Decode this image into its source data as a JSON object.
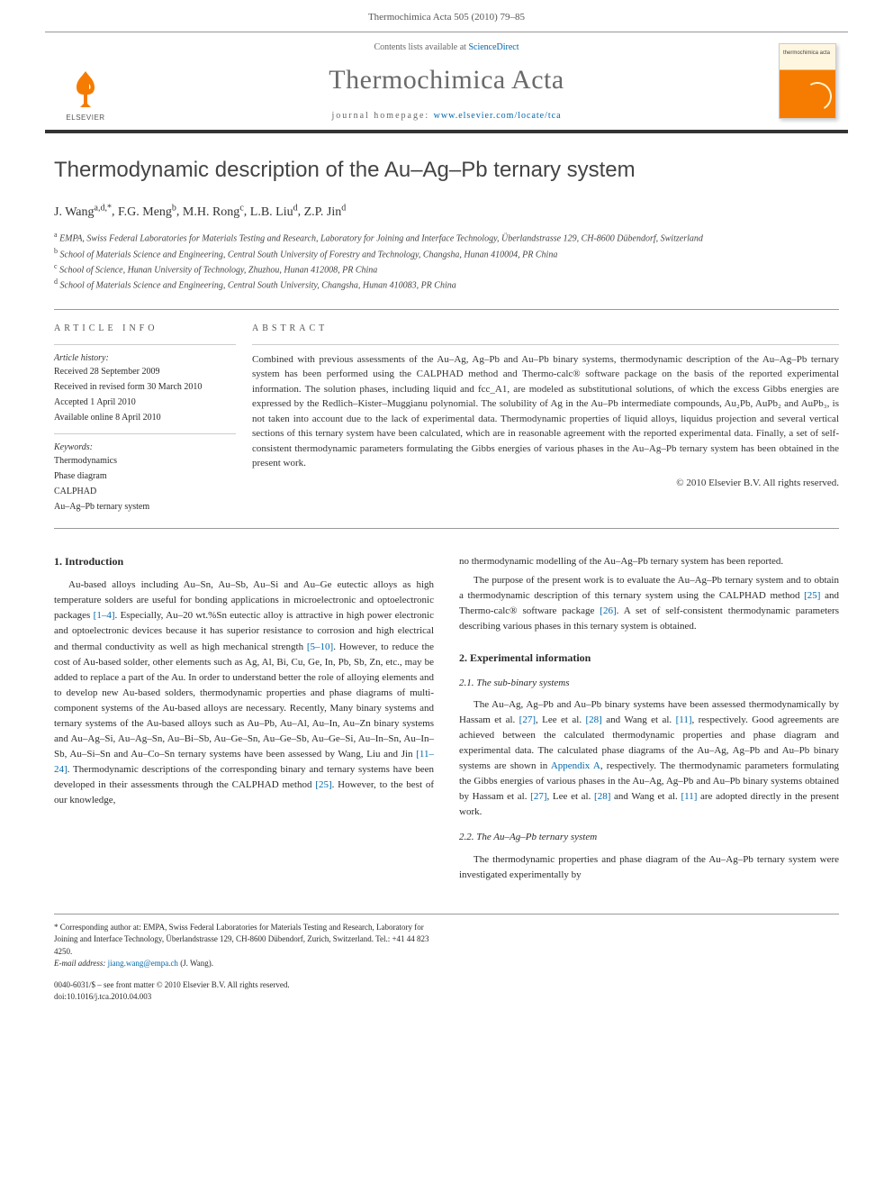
{
  "header": {
    "citation": "Thermochimica Acta 505 (2010) 79–85"
  },
  "masthead": {
    "contents_prefix": "Contents lists available at ",
    "contents_link": "ScienceDirect",
    "journal_title": "Thermochimica Acta",
    "homepage_prefix": "journal homepage: ",
    "homepage_url": "www.elsevier.com/locate/tca",
    "elsevier_label": "ELSEVIER",
    "cover_label": "thermochimica acta"
  },
  "article": {
    "title": "Thermodynamic description of the Au–Ag–Pb ternary system",
    "authors_html": "J. Wang",
    "authors": [
      {
        "name": "J. Wang",
        "aff": "a,d,*"
      },
      {
        "name": "F.G. Meng",
        "aff": "b"
      },
      {
        "name": "M.H. Rong",
        "aff": "c"
      },
      {
        "name": "L.B. Liu",
        "aff": "d"
      },
      {
        "name": "Z.P. Jin",
        "aff": "d"
      }
    ],
    "affiliations": [
      {
        "marker": "a",
        "text": "EMPA, Swiss Federal Laboratories for Materials Testing and Research, Laboratory for Joining and Interface Technology, Überlandstrasse 129, CH-8600 Dübendorf, Switzerland"
      },
      {
        "marker": "b",
        "text": "School of Materials Science and Engineering, Central South University of Forestry and Technology, Changsha, Hunan 410004, PR China"
      },
      {
        "marker": "c",
        "text": "School of Science, Hunan University of Technology, Zhuzhou, Hunan 412008, PR China"
      },
      {
        "marker": "d",
        "text": "School of Materials Science and Engineering, Central South University, Changsha, Hunan 410083, PR China"
      }
    ]
  },
  "info": {
    "heading": "article info",
    "history_label": "Article history:",
    "history": [
      "Received 28 September 2009",
      "Received in revised form 30 March 2010",
      "Accepted 1 April 2010",
      "Available online 8 April 2010"
    ],
    "keywords_label": "Keywords:",
    "keywords": [
      "Thermodynamics",
      "Phase diagram",
      "CALPHAD",
      "Au–Ag–Pb ternary system"
    ]
  },
  "abstract": {
    "heading": "abstract",
    "text": "Combined with previous assessments of the Au–Ag, Ag–Pb and Au–Pb binary systems, thermodynamic description of the Au–Ag–Pb ternary system has been performed using the CALPHAD method and Thermo-calc® software package on the basis of the reported experimental information. The solution phases, including liquid and fcc_A1, are modeled as substitutional solutions, of which the excess Gibbs energies are expressed by the Redlich–Kister–Muggianu polynomial. The solubility of Ag in the Au–Pb intermediate compounds, Au₂Pb, AuPb₂ and AuPb₃, is not taken into account due to the lack of experimental data. Thermodynamic properties of liquid alloys, liquidus projection and several vertical sections of this ternary system have been calculated, which are in reasonable agreement with the reported experimental data. Finally, a set of self-consistent thermodynamic parameters formulating the Gibbs energies of various phases in the Au–Ag–Pb ternary system has been obtained in the present work.",
    "copyright": "© 2010 Elsevier B.V. All rights reserved."
  },
  "body": {
    "col1": {
      "heading1": "1. Introduction",
      "p1": "Au-based alloys including Au–Sn, Au–Sb, Au–Si and Au–Ge eutectic alloys as high temperature solders are useful for bonding applications in microelectronic and optoelectronic packages [1–4]. Especially, Au–20 wt.%Sn eutectic alloy is attractive in high power electronic and optoelectronic devices because it has superior resistance to corrosion and high electrical and thermal conductivity as well as high mechanical strength [5–10]. However, to reduce the cost of Au-based solder, other elements such as Ag, Al, Bi, Cu, Ge, In, Pb, Sb, Zn, etc., may be added to replace a part of the Au. In order to understand better the role of alloying elements and to develop new Au-based solders, thermodynamic properties and phase diagrams of multi-component systems of the Au-based alloys are necessary. Recently, Many binary systems and ternary systems of the Au-based alloys such as Au–Pb, Au–Al, Au–In, Au–Zn binary systems and Au–Ag–Si, Au–Ag–Sn, Au–Bi–Sb, Au–Ge–Sn, Au–Ge–Sb, Au–Ge–Si, Au–In–Sn, Au–In–Sb, Au–Si–Sn and Au–Co–Sn ternary systems have been assessed by Wang, Liu and Jin [11–24]. Thermodynamic descriptions of the corresponding binary and ternary systems have been developed in their assessments through the CALPHAD method [25]. However, to the best of our knowledge,",
      "refs1": [
        "[1–4]",
        "[5–10]",
        "[11–24]",
        "[25]"
      ]
    },
    "col2": {
      "p1": "no thermodynamic modelling of the Au–Ag–Pb ternary system has been reported.",
      "p2": "The purpose of the present work is to evaluate the Au–Ag–Pb ternary system and to obtain a thermodynamic description of this ternary system using the CALPHAD method [25] and Thermo-calc® software package [26]. A set of self-consistent thermodynamic parameters describing various phases in this ternary system is obtained.",
      "heading2": "2. Experimental information",
      "sub21": "2.1. The sub-binary systems",
      "p3": "The Au–Ag, Ag–Pb and Au–Pb binary systems have been assessed thermodynamically by Hassam et al. [27], Lee et al. [28] and Wang et al. [11], respectively. Good agreements are achieved between the calculated thermodynamic properties and phase diagram and experimental data. The calculated phase diagrams of the Au–Ag, Ag–Pb and Au–Pb binary systems are shown in Appendix A, respectively. The thermodynamic parameters formulating the Gibbs energies of various phases in the Au–Ag, Ag–Pb and Au–Pb binary systems obtained by Hassam et al. [27], Lee et al. [28] and Wang et al. [11] are adopted directly in the present work.",
      "sub22": "2.2. The Au–Ag–Pb ternary system",
      "p4": "The thermodynamic properties and phase diagram of the Au–Ag–Pb ternary system were investigated experimentally by",
      "refs2": [
        "[25]",
        "[26]",
        "[27]",
        "[28]",
        "[11]",
        "[27]",
        "[28]",
        "[11]"
      ],
      "appendix_link": "Appendix A"
    }
  },
  "footer": {
    "corresponding": "* Corresponding author at: EMPA, Swiss Federal Laboratories for Materials Testing and Research, Laboratory for Joining and Interface Technology, Überlandstrasse 129, CH-8600 Dübendorf, Zurich, Switzerland. Tel.: +41 44 823 4250.",
    "email_label": "E-mail address: ",
    "email": "jiang.wang@empa.ch",
    "email_person": " (J. Wang).",
    "issn": "0040-6031/$ – see front matter © 2010 Elsevier B.V. All rights reserved.",
    "doi": "doi:10.1016/j.tca.2010.04.003"
  },
  "colors": {
    "link": "#0066aa",
    "elsevier_orange": "#f57c00",
    "rule": "#999999",
    "text": "#2a2a2a"
  }
}
